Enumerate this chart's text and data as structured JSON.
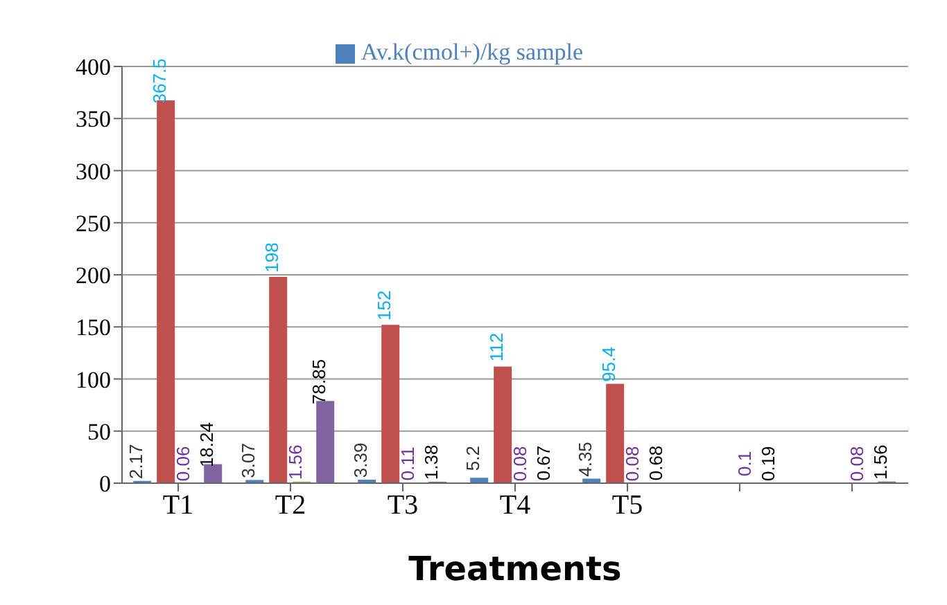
{
  "chart_data": {
    "type": "bar",
    "xlabel": "Treatments",
    "categories": [
      "T1",
      "T2",
      "T3",
      "T4",
      "T5",
      null,
      null
    ],
    "series": [
      {
        "name": "Av.k(cmol+)/kg sample",
        "color": "#4f81bd",
        "values": [
          2.17,
          3.07,
          3.39,
          5.2,
          4.35,
          null,
          null
        ]
      },
      {
        "color": "#c0504d",
        "values": [
          367.5,
          198,
          152,
          112,
          95.4,
          null,
          null
        ]
      },
      {
        "color": "#9bbb59",
        "values": [
          0.06,
          1.56,
          0.11,
          0.08,
          0.08,
          0.1,
          0.08
        ]
      },
      {
        "color": "#8064a2",
        "values": [
          18.24,
          78.85,
          1.38,
          0.67,
          0.68,
          0.19,
          1.56
        ]
      }
    ],
    "ylim": [
      0,
      400
    ],
    "yticks": [
      0,
      50,
      100,
      150,
      200,
      250,
      300,
      350,
      400
    ],
    "grid": "y",
    "legend": "top",
    "data_labels": true
  }
}
